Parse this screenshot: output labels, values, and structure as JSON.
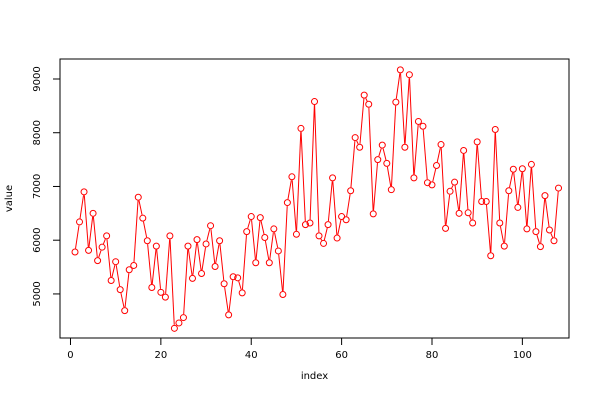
{
  "chart_data": {
    "type": "line",
    "title": "",
    "xlabel": "index",
    "ylabel": "value",
    "xlim": [
      -2.32,
      110.32
    ],
    "ylim": [
      4180,
      9372
    ],
    "x_ticks": [
      0,
      20,
      40,
      60,
      80,
      100
    ],
    "y_ticks": [
      5000,
      6000,
      7000,
      8000,
      9000
    ],
    "grid": false,
    "legend": "none",
    "series": [
      {
        "color": "#ff0000",
        "marker": "open-circle",
        "x": [
          1,
          2,
          3,
          4,
          5,
          6,
          7,
          8,
          9,
          10,
          11,
          12,
          13,
          14,
          15,
          16,
          17,
          18,
          19,
          20,
          21,
          22,
          23,
          24,
          25,
          26,
          27,
          28,
          29,
          30,
          31,
          32,
          33,
          34,
          35,
          36,
          37,
          38,
          39,
          40,
          41,
          42,
          43,
          44,
          45,
          46,
          47,
          48,
          49,
          50,
          51,
          52,
          53,
          54,
          55,
          56,
          57,
          58,
          59,
          60,
          61,
          62,
          63,
          64,
          65,
          66,
          67,
          68,
          69,
          70,
          71,
          72,
          73,
          74,
          75,
          76,
          77,
          78,
          79,
          80,
          81,
          82,
          83,
          84,
          85,
          86,
          87,
          88,
          89,
          90,
          91,
          92,
          93,
          94,
          95,
          96,
          97,
          98,
          99,
          100,
          101,
          102,
          103,
          104,
          105,
          106,
          107,
          108
        ],
        "values": [
          5780,
          6340,
          6900,
          5810,
          6500,
          5620,
          5870,
          6080,
          5250,
          5600,
          5080,
          4690,
          5450,
          5530,
          6800,
          6410,
          5990,
          5120,
          5890,
          5030,
          4940,
          6080,
          4360,
          4460,
          4560,
          5890,
          5290,
          6010,
          5380,
          5930,
          6270,
          5510,
          5990,
          5190,
          4610,
          5320,
          5300,
          5020,
          6160,
          6440,
          5580,
          6420,
          6050,
          5580,
          6210,
          5800,
          4990,
          6700,
          7180,
          6110,
          8080,
          6290,
          6320,
          8580,
          6080,
          5940,
          6290,
          7160,
          6040,
          6440,
          6380,
          6920,
          7910,
          7730,
          8700,
          8530,
          6490,
          7500,
          7770,
          7430,
          6940,
          8570,
          9170,
          7730,
          9080,
          7160,
          8210,
          8120,
          7070,
          7030,
          7390,
          7780,
          6220,
          6910,
          7080,
          6500,
          7670,
          6510,
          6320,
          7830,
          6720,
          6720,
          5710,
          8060,
          6320,
          5890,
          6920,
          7320,
          6610,
          7330,
          6210,
          7410,
          6160,
          5880,
          6830,
          6190,
          5990,
          6970
        ]
      }
    ]
  }
}
